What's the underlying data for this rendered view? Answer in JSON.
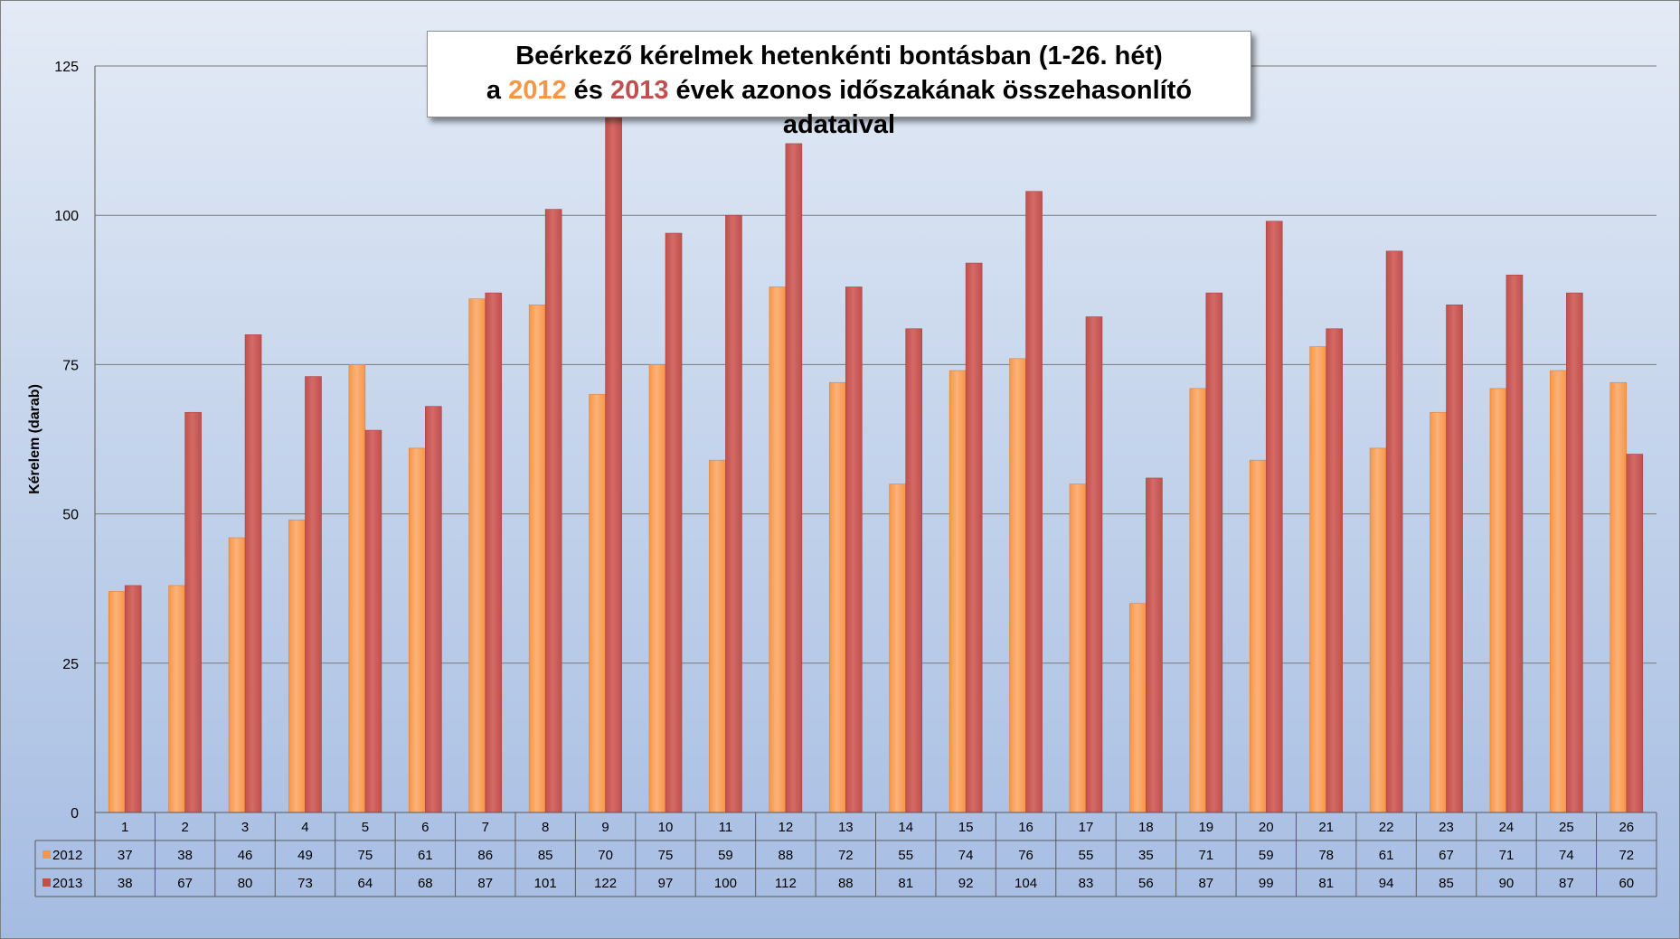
{
  "title": {
    "line1": "Beérkező kérelmek hetenkénti bontásban (1-26. hét)",
    "line2_prefix": "a ",
    "line2_year1": "2012",
    "line2_middle": " és ",
    "line2_year2": "2013",
    "line2_suffix": " évek azonos időszakának összehasonlító adataival"
  },
  "chart_data": {
    "type": "bar",
    "ylabel": "Kérelem (darab)",
    "xlabel": "",
    "ylim": [
      0,
      125
    ],
    "yticks": [
      0,
      25,
      50,
      75,
      100,
      125
    ],
    "grid": true,
    "legend_placement": "data table rows below the plot",
    "categories": [
      "1",
      "2",
      "3",
      "4",
      "5",
      "6",
      "7",
      "8",
      "9",
      "10",
      "11",
      "12",
      "13",
      "14",
      "15",
      "16",
      "17",
      "18",
      "19",
      "20",
      "21",
      "22",
      "23",
      "24",
      "25",
      "26"
    ],
    "series": [
      {
        "name": "2012",
        "color": "#f79646",
        "values": [
          37,
          38,
          46,
          49,
          75,
          61,
          86,
          85,
          70,
          75,
          59,
          88,
          72,
          55,
          74,
          76,
          55,
          35,
          71,
          59,
          78,
          61,
          67,
          71,
          74,
          72
        ]
      },
      {
        "name": "2013",
        "color": "#c0504d",
        "values": [
          38,
          67,
          80,
          73,
          64,
          68,
          87,
          101,
          122,
          97,
          100,
          112,
          88,
          81,
          92,
          104,
          83,
          56,
          87,
          99,
          81,
          94,
          85,
          90,
          87,
          60
        ]
      }
    ]
  }
}
